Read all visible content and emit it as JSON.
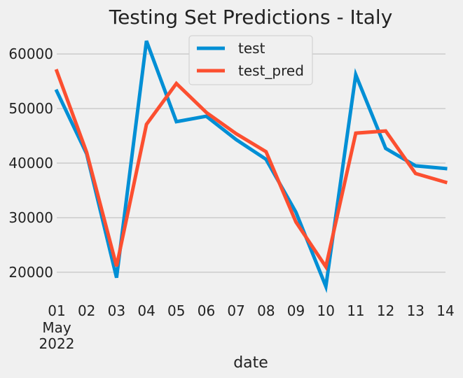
{
  "chart_data": {
    "type": "line",
    "title": "Testing Set Predictions - Italy",
    "xlabel": "date",
    "ylabel": "",
    "x": [
      "2022-05-01",
      "2022-05-02",
      "2022-05-03",
      "2022-05-04",
      "2022-05-05",
      "2022-05-06",
      "2022-05-07",
      "2022-05-08",
      "2022-05-09",
      "2022-05-10",
      "2022-05-11",
      "2022-05-12",
      "2022-05-13",
      "2022-05-14"
    ],
    "x_tick_labels": [
      "01",
      "02",
      "03",
      "04",
      "05",
      "06",
      "07",
      "08",
      "09",
      "10",
      "11",
      "12",
      "13",
      "14"
    ],
    "x_sub_label_month": "May",
    "x_sub_label_year": "2022",
    "ylim": [
      15500,
      64000
    ],
    "y_ticks": [
      20000,
      30000,
      40000,
      50000,
      60000
    ],
    "grid": true,
    "legend_position": "top-center",
    "series": [
      {
        "name": "test",
        "color": "#008fd5",
        "values": [
          53200,
          41700,
          19000,
          62400,
          47600,
          48600,
          44300,
          40700,
          31000,
          17400,
          56200,
          42700,
          39500,
          39000
        ]
      },
      {
        "name": "test_pred",
        "color": "#fc4f30",
        "values": [
          56900,
          42000,
          21100,
          47100,
          54600,
          49300,
          45400,
          42100,
          29200,
          21000,
          45500,
          45900,
          38100,
          36500
        ]
      }
    ]
  }
}
